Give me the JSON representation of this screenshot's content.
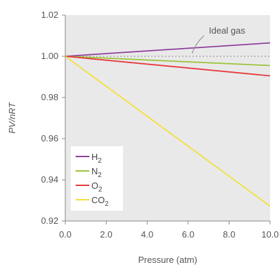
{
  "chart_data": {
    "type": "line",
    "xlabel": "Pressure (atm)",
    "ylabel": "PV/nRT",
    "xlim": [
      0,
      10
    ],
    "ylim": [
      0.92,
      1.02
    ],
    "x_ticks": [
      "0.0",
      "2.0",
      "4.0",
      "6.0",
      "8.0",
      "10.0"
    ],
    "y_ticks": [
      "0.92",
      "0.94",
      "0.96",
      "0.98",
      "1.00",
      "1.02"
    ],
    "grid": false,
    "legend_position": "bottom-left",
    "annotation": {
      "text": "Ideal gas",
      "points_to": {
        "x": 6.2,
        "y": 1.0
      }
    },
    "ideal_line": {
      "y": 1.0,
      "style": "dotted",
      "color": "#999999"
    },
    "series": [
      {
        "name": "H",
        "subscript": "2",
        "color": "#8e3f9a",
        "x": [
          0,
          10
        ],
        "y": [
          1.0,
          1.0065
        ]
      },
      {
        "name": "N",
        "subscript": "2",
        "color": "#9cc53c",
        "x": [
          0,
          10
        ],
        "y": [
          1.0,
          0.9955
        ]
      },
      {
        "name": "O",
        "subscript": "2",
        "color": "#e8393b",
        "x": [
          0,
          10
        ],
        "y": [
          1.0,
          0.9905
        ]
      },
      {
        "name": "CO",
        "subscript": "2",
        "color": "#f3e03b",
        "x": [
          0,
          10
        ],
        "y": [
          1.0,
          0.9272
        ]
      }
    ],
    "colors": {
      "plot_background": "#e9e9ea",
      "axis": "#888888",
      "text": "#555555"
    }
  }
}
